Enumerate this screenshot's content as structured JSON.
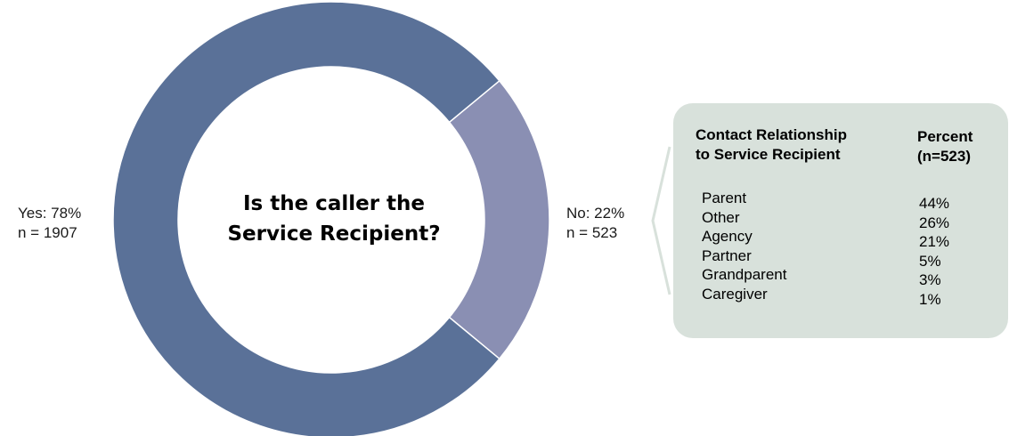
{
  "chart_data": {
    "type": "pie",
    "style": "donut",
    "title": "Is the caller the Service Recipient?",
    "slices": [
      {
        "label": "Yes",
        "percent": 78,
        "n": 1907,
        "label_line1": "Yes: 78%",
        "label_line2": "n = 1907",
        "color": "#5a7198"
      },
      {
        "label": "No",
        "percent": 22,
        "n": 523,
        "label_line1": "No: 22%",
        "label_line2": "n = 523",
        "color": "#8a8fb3"
      }
    ],
    "callout": {
      "header_relationship": [
        "Contact Relationship",
        "to Service Recipient"
      ],
      "header_percent": [
        "Percent",
        "(n=523)"
      ],
      "rows": [
        {
          "relationship": "Parent",
          "percent": "44%"
        },
        {
          "relationship": "Other",
          "percent": "26%"
        },
        {
          "relationship": "Agency",
          "percent": "21%"
        },
        {
          "relationship": "Partner",
          "percent": "5%"
        },
        {
          "relationship": "Grandparent",
          "percent": "3%"
        },
        {
          "relationship": "Caregiver",
          "percent": "1%"
        }
      ],
      "background": "#d8e1db"
    }
  }
}
